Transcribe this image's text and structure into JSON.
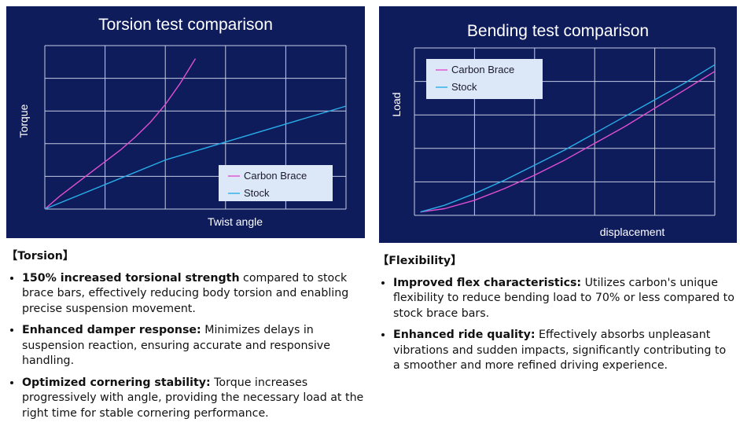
{
  "colors": {
    "panel_bg": "#0f1c5c",
    "grid": "#c6cbe4",
    "carbon": "#e04fd0",
    "stock": "#28aee8",
    "legend_bg": "#dce8f7"
  },
  "chart_data": [
    {
      "type": "line",
      "title": "Torsion test comparison",
      "xlabel": "Twist angle",
      "ylabel": "Torque",
      "grid": true,
      "legend_position": "bottom-right",
      "xlim": [
        0,
        5
      ],
      "ylim": [
        0,
        5
      ],
      "series": [
        {
          "name": "Carbon Brace",
          "color": "#e04fd0",
          "x": [
            0,
            0.25,
            0.5,
            0.75,
            1.0,
            1.25,
            1.5,
            1.75,
            2.0,
            2.25,
            2.5
          ],
          "y": [
            0,
            0.4,
            0.75,
            1.1,
            1.45,
            1.8,
            2.2,
            2.65,
            3.2,
            3.85,
            4.6
          ]
        },
        {
          "name": "Stock",
          "color": "#28aee8",
          "x": [
            0,
            1,
            2,
            3,
            4,
            5
          ],
          "y": [
            0,
            0.75,
            1.5,
            2.05,
            2.6,
            3.15
          ]
        }
      ]
    },
    {
      "type": "line",
      "title": "Bending test comparison",
      "xlabel": "displacement",
      "ylabel": "Load",
      "grid": true,
      "legend_position": "top-left",
      "xlim": [
        0,
        5
      ],
      "ylim": [
        0,
        5
      ],
      "series": [
        {
          "name": "Carbon Brace",
          "color": "#e04fd0",
          "x": [
            0.1,
            0.5,
            1.0,
            1.5,
            2.0,
            2.5,
            3.0,
            3.5,
            4.0,
            4.5,
            5.0
          ],
          "y": [
            0.1,
            0.2,
            0.45,
            0.8,
            1.2,
            1.65,
            2.15,
            2.65,
            3.2,
            3.75,
            4.3
          ]
        },
        {
          "name": "Stock",
          "color": "#28aee8",
          "x": [
            0.1,
            0.5,
            1.0,
            1.5,
            2.0,
            2.5,
            3.0,
            3.5,
            4.0,
            4.5,
            5.0
          ],
          "y": [
            0.1,
            0.3,
            0.65,
            1.05,
            1.5,
            1.95,
            2.45,
            2.95,
            3.45,
            3.95,
            4.5
          ]
        }
      ]
    }
  ],
  "sections": {
    "torsion": {
      "heading": "【Torsion】",
      "items": [
        {
          "bold": "150% increased torsional strength",
          "text": " compared to stock brace bars, effectively reducing body torsion and enabling precise suspension movement."
        },
        {
          "bold": "Enhanced damper response:",
          "text": " Minimizes delays in suspension reaction, ensuring accurate and responsive handling."
        },
        {
          "bold": "Optimized cornering stability:",
          "text": " Torque increases progressively with angle, providing the necessary load at the right time for stable cornering performance."
        }
      ]
    },
    "flexibility": {
      "heading": "【Flexibility】",
      "items": [
        {
          "bold": "Improved flex characteristics:",
          "text": " Utilizes carbon's unique flexibility to reduce bending load to 70% or less compared to stock brace bars."
        },
        {
          "bold": "Enhanced ride quality:",
          "text": " Effectively absorbs unpleasant vibrations and sudden impacts, significantly contributing to a smoother and more refined driving experience."
        }
      ]
    }
  }
}
